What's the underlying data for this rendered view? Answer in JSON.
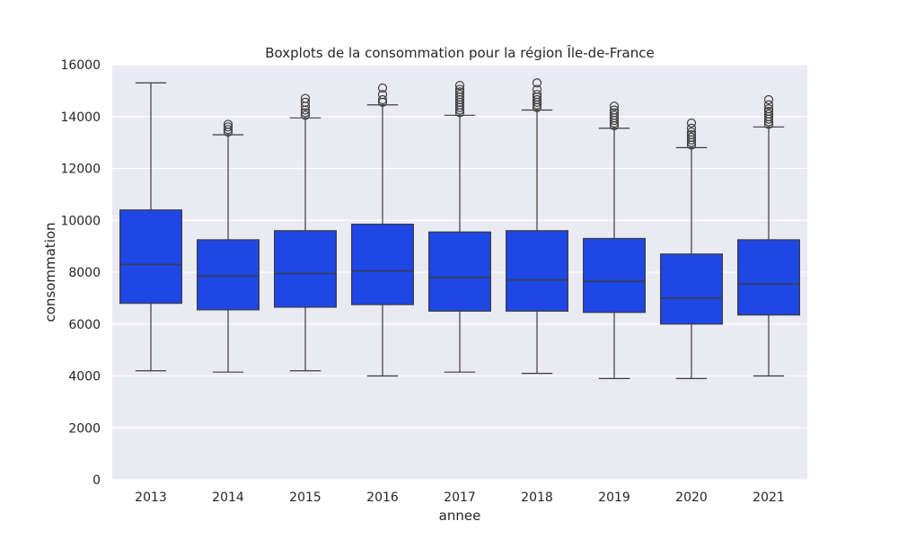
{
  "chart_data": {
    "type": "boxplot",
    "title": "Boxplots de la consommation pour la région Île-de-France",
    "xlabel": "annee",
    "ylabel": "consommation",
    "ylim": [
      0,
      16000
    ],
    "yticks": [
      0,
      2000,
      4000,
      6000,
      8000,
      10000,
      12000,
      14000,
      16000
    ],
    "grid": true,
    "colors": {
      "box": "#1f47e6",
      "plot_background": "#eaeaf2",
      "grid": "#ffffff",
      "line": "#3d3d3d"
    },
    "categories": [
      "2013",
      "2014",
      "2015",
      "2016",
      "2017",
      "2018",
      "2019",
      "2020",
      "2021"
    ],
    "boxes": [
      {
        "whisker_low": 4200,
        "q1": 6800,
        "median": 8300,
        "q3": 10400,
        "whisker_high": 15300,
        "outliers": []
      },
      {
        "whisker_low": 4150,
        "q1": 6550,
        "median": 7850,
        "q3": 9250,
        "whisker_high": 13300,
        "outliers": [
          13400,
          13500,
          13600,
          13700
        ]
      },
      {
        "whisker_low": 4200,
        "q1": 6650,
        "median": 7950,
        "q3": 9600,
        "whisker_high": 13950,
        "outliers": [
          14050,
          14150,
          14250,
          14400,
          14550,
          14700
        ]
      },
      {
        "whisker_low": 4000,
        "q1": 6750,
        "median": 8050,
        "q3": 9850,
        "whisker_high": 14450,
        "outliers": [
          14550,
          14650,
          14850,
          15100
        ]
      },
      {
        "whisker_low": 4150,
        "q1": 6500,
        "median": 7800,
        "q3": 9550,
        "whisker_high": 14050,
        "outliers": [
          14150,
          14250,
          14350,
          14450,
          14550,
          14650,
          14750,
          14850,
          14950,
          15050,
          15200
        ]
      },
      {
        "whisker_low": 4100,
        "q1": 6500,
        "median": 7700,
        "q3": 9600,
        "whisker_high": 14250,
        "outliers": [
          14350,
          14450,
          14550,
          14650,
          14750,
          14850,
          15050,
          15300
        ]
      },
      {
        "whisker_low": 3900,
        "q1": 6450,
        "median": 7650,
        "q3": 9300,
        "whisker_high": 13550,
        "outliers": [
          13650,
          13750,
          13850,
          13950,
          14050,
          14150,
          14250,
          14400
        ]
      },
      {
        "whisker_low": 3900,
        "q1": 6000,
        "median": 7000,
        "q3": 8700,
        "whisker_high": 12800,
        "outliers": [
          12900,
          13000,
          13100,
          13200,
          13300,
          13400,
          13550,
          13750
        ]
      },
      {
        "whisker_low": 4000,
        "q1": 6350,
        "median": 7550,
        "q3": 9250,
        "whisker_high": 13600,
        "outliers": [
          13700,
          13800,
          13900,
          14000,
          14100,
          14200,
          14300,
          14450,
          14650
        ]
      }
    ]
  }
}
